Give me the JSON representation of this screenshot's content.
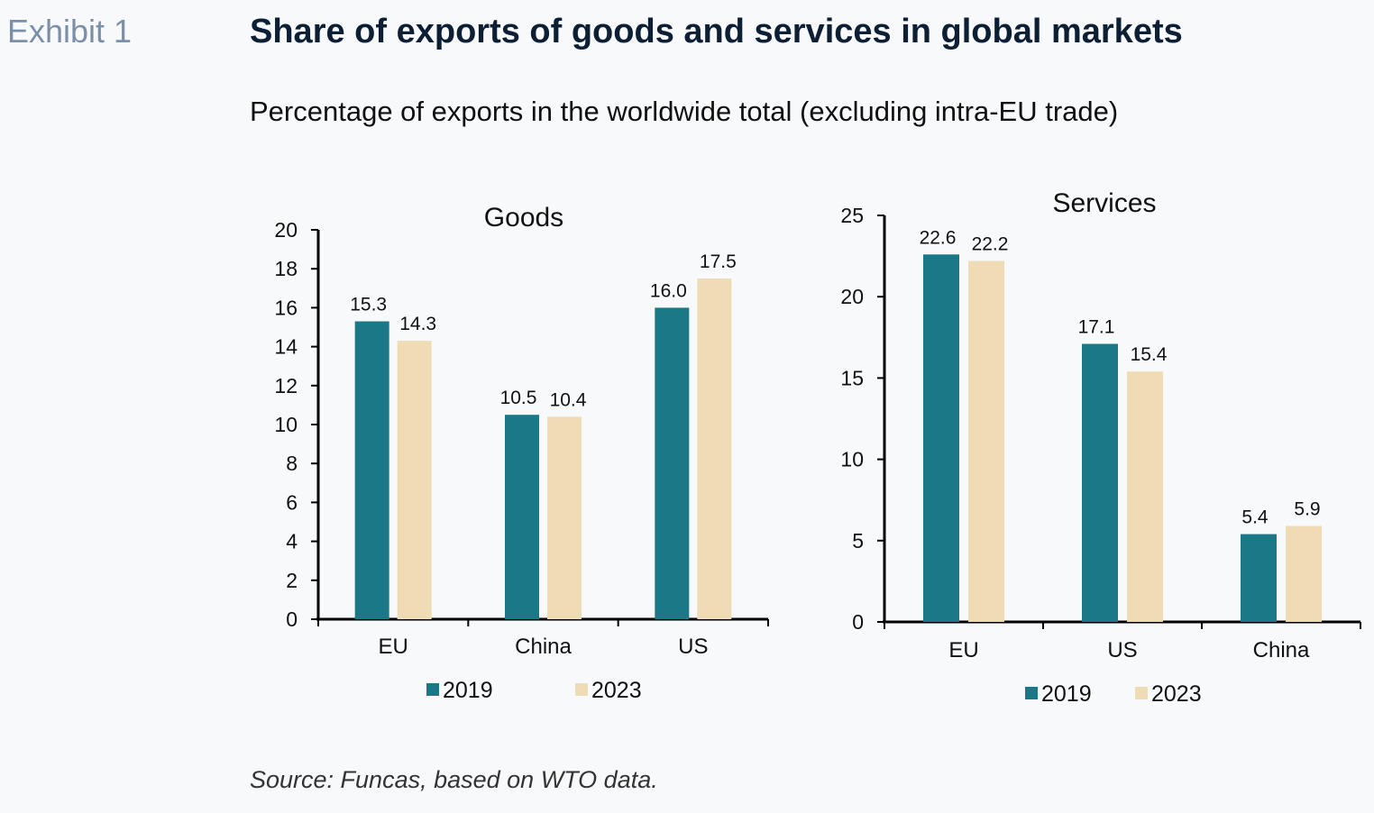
{
  "header": {
    "exhibit": "Exhibit 1",
    "title": "Share of exports of goods and services in global markets",
    "subtitle": "Percentage of exports in the worldwide total (excluding intra-EU trade)"
  },
  "footer": {
    "source": "Source: Funcas, based on WTO data."
  },
  "colors": {
    "series_2019": "#1b7886",
    "series_2023": "#f0dcb4"
  },
  "chart_data": [
    {
      "type": "bar",
      "title": "Goods",
      "categories": [
        "EU",
        "China",
        "US"
      ],
      "series": [
        {
          "name": "2019",
          "values": [
            15.3,
            10.5,
            16.0
          ],
          "labels": [
            "15.3",
            "10.5",
            "16.0"
          ]
        },
        {
          "name": "2023",
          "values": [
            14.3,
            10.4,
            17.5
          ],
          "labels": [
            "14.3",
            "10.4",
            "17.5"
          ]
        }
      ],
      "ylim": [
        0,
        20
      ],
      "yticks": [
        0,
        2,
        4,
        6,
        8,
        10,
        12,
        14,
        16,
        18,
        20
      ],
      "grid": false,
      "legend": "bottom"
    },
    {
      "type": "bar",
      "title": "Services",
      "categories": [
        "EU",
        "US",
        "China"
      ],
      "series": [
        {
          "name": "2019",
          "values": [
            22.6,
            17.1,
            5.4
          ],
          "labels": [
            "22.6",
            "17.1",
            "5.4"
          ]
        },
        {
          "name": "2023",
          "values": [
            22.2,
            15.4,
            5.9
          ],
          "labels": [
            "22.2",
            "15.4",
            "5.9"
          ]
        }
      ],
      "ylim": [
        0,
        25
      ],
      "yticks": [
        0,
        5,
        10,
        15,
        20,
        25
      ],
      "grid": false,
      "legend": "bottom"
    }
  ]
}
